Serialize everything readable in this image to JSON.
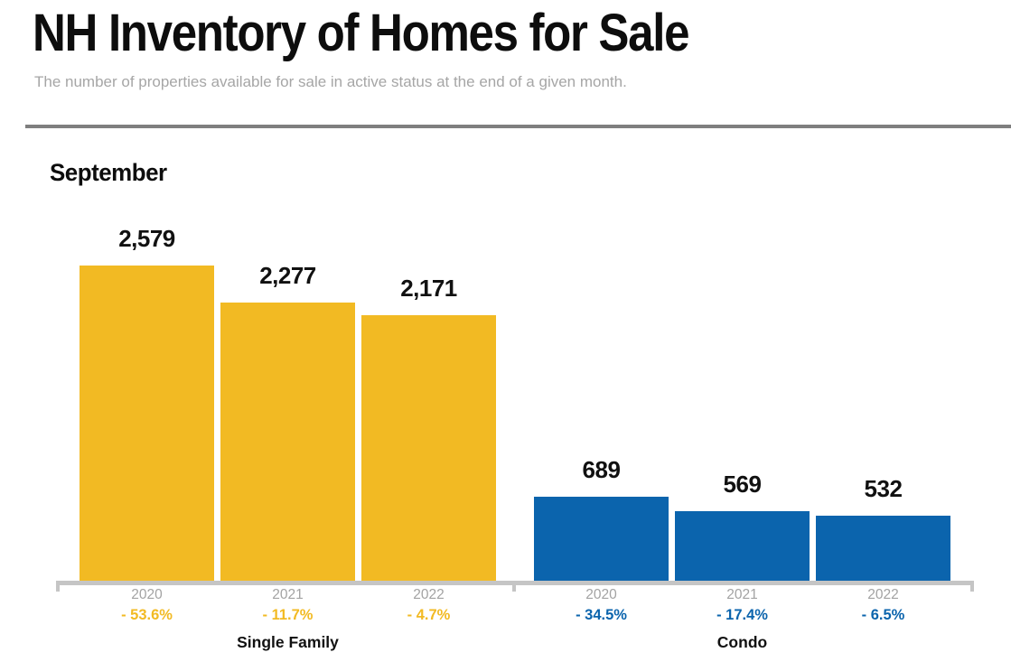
{
  "header": {
    "title": "NH Inventory of Homes for Sale",
    "subtitle": "The number of properties available for sale in active status at the end of a given month."
  },
  "chart": {
    "month_label": "September"
  },
  "chart_data": {
    "type": "bar",
    "title": "NH Inventory of Homes for Sale",
    "subtitle_month": "September",
    "categories": [
      "2020",
      "2021",
      "2022"
    ],
    "series": [
      {
        "name": "Single Family",
        "color": "#F2BA23",
        "values": [
          2579,
          2277,
          2171
        ],
        "value_labels": [
          "2,579",
          "2,277",
          "2,171"
        ],
        "pct_change_labels": [
          "- 53.6%",
          "- 11.7%",
          "- 4.7%"
        ]
      },
      {
        "name": "Condo",
        "color": "#0B64AD",
        "values": [
          689,
          569,
          532
        ],
        "value_labels": [
          "689",
          "569",
          "532"
        ],
        "pct_change_labels": [
          "- 34.5%",
          "- 17.4%",
          "- 6.5%"
        ]
      }
    ],
    "ylim": [
      0,
      2579
    ],
    "gridlines": false,
    "legend_position": "none",
    "value_labels_position": "above-bars",
    "colors": {
      "subtitle_text": "#A6A6A6",
      "divider_line": "#7F7F7F",
      "axis_line": "#C5C5C5",
      "year_label_text": "#A3A3A3",
      "value_label_text": "#111111"
    }
  }
}
